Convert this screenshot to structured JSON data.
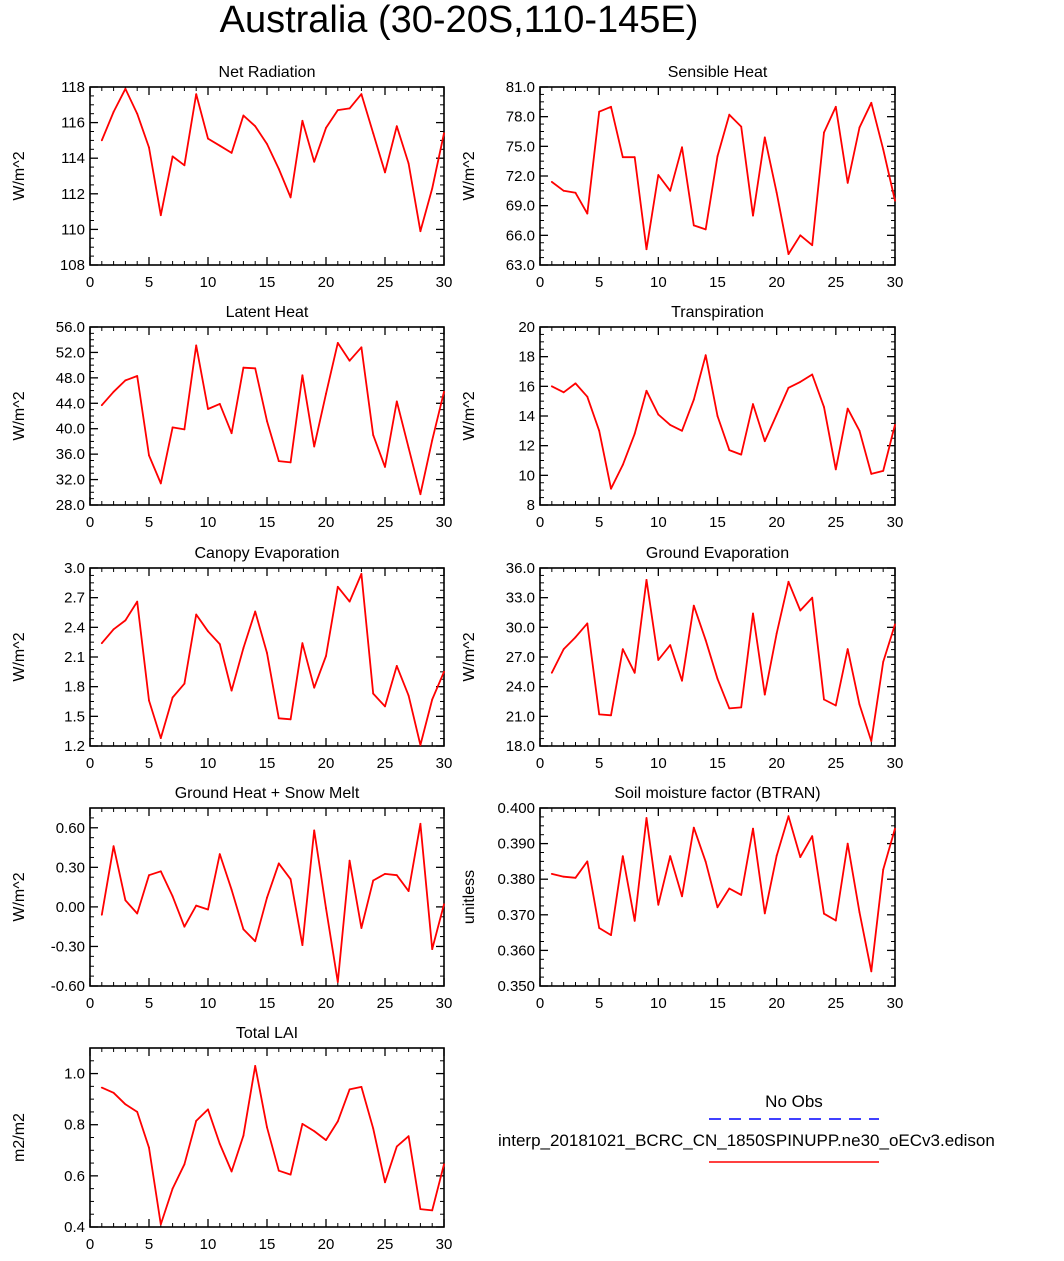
{
  "figure": {
    "title": "Australia (30-20S,110-145E)",
    "legend": {
      "obs_label": "No Obs",
      "obs_color": "#0000ff",
      "model_label": "interp_20181021_BCRC_CN_1850SPINUPP.ne30_oECv3.edison",
      "model_color": "#ff0000"
    }
  },
  "chart_data": [
    {
      "type": "line",
      "title": "Net Radiation",
      "ylabel": "W/m^2",
      "xlabel": "",
      "xlim": [
        0,
        30
      ],
      "ylim": [
        108,
        118
      ],
      "xticks": [
        0,
        5,
        10,
        15,
        20,
        25,
        30
      ],
      "yticks": [
        108,
        110,
        112,
        114,
        116,
        118
      ],
      "ytick_labels": [
        "108",
        "110",
        "112",
        "114",
        "116",
        "118"
      ],
      "x": [
        1,
        2,
        3,
        4,
        5,
        6,
        7,
        8,
        9,
        10,
        11,
        12,
        13,
        14,
        15,
        16,
        17,
        18,
        19,
        20,
        21,
        22,
        23,
        24,
        25,
        26,
        27,
        28,
        29,
        30
      ],
      "series": [
        {
          "name": "model",
          "color": "#ff0000",
          "values": [
            115.0,
            116.6,
            117.9,
            116.5,
            114.6,
            110.8,
            114.1,
            113.6,
            117.6,
            115.1,
            114.7,
            114.3,
            116.4,
            115.8,
            114.8,
            113.4,
            111.8,
            116.1,
            113.8,
            115.7,
            116.7,
            116.8,
            117.6,
            115.4,
            113.2,
            115.8,
            113.7,
            109.9,
            112.3,
            115.4
          ]
        }
      ]
    },
    {
      "type": "line",
      "title": "Sensible Heat",
      "ylabel": "W/m^2",
      "xlabel": "",
      "xlim": [
        0,
        30
      ],
      "ylim": [
        63,
        81
      ],
      "xticks": [
        0,
        5,
        10,
        15,
        20,
        25,
        30
      ],
      "yticks": [
        63,
        66,
        69,
        72,
        75,
        78,
        81
      ],
      "ytick_labels": [
        "63.0",
        "66.0",
        "69.0",
        "72.0",
        "75.0",
        "78.0",
        "81.0"
      ],
      "x": [
        1,
        2,
        3,
        4,
        5,
        6,
        7,
        8,
        9,
        10,
        11,
        12,
        13,
        14,
        15,
        16,
        17,
        18,
        19,
        20,
        21,
        22,
        23,
        24,
        25,
        26,
        27,
        28,
        29,
        30
      ],
      "series": [
        {
          "name": "model",
          "color": "#ff0000",
          "values": [
            71.4,
            70.5,
            70.3,
            68.2,
            78.5,
            79.0,
            73.9,
            73.9,
            64.6,
            72.1,
            70.5,
            74.9,
            67.0,
            66.6,
            74.0,
            78.2,
            77.0,
            68.0,
            75.9,
            70.3,
            64.1,
            66.0,
            65.0,
            76.4,
            79.0,
            71.3,
            76.9,
            79.4,
            74.7,
            69.5
          ]
        }
      ]
    },
    {
      "type": "line",
      "title": "Latent Heat",
      "ylabel": "W/m^2",
      "xlabel": "",
      "xlim": [
        0,
        30
      ],
      "ylim": [
        28,
        56
      ],
      "xticks": [
        0,
        5,
        10,
        15,
        20,
        25,
        30
      ],
      "yticks": [
        28,
        32,
        36,
        40,
        44,
        48,
        52,
        56
      ],
      "ytick_labels": [
        "28.0",
        "32.0",
        "36.0",
        "40.0",
        "44.0",
        "48.0",
        "52.0",
        "56.0"
      ],
      "x": [
        1,
        2,
        3,
        4,
        5,
        6,
        7,
        8,
        9,
        10,
        11,
        12,
        13,
        14,
        15,
        16,
        17,
        18,
        19,
        20,
        21,
        22,
        23,
        24,
        25,
        26,
        27,
        28,
        29,
        30
      ],
      "series": [
        {
          "name": "model",
          "color": "#ff0000",
          "values": [
            43.7,
            45.8,
            47.6,
            48.3,
            35.8,
            31.4,
            40.2,
            39.9,
            53.1,
            43.1,
            43.9,
            39.3,
            49.6,
            49.5,
            41.2,
            34.9,
            34.7,
            48.4,
            37.2,
            45.5,
            53.5,
            50.7,
            52.8,
            39.0,
            34.0,
            44.3,
            37.0,
            29.7,
            38.2,
            45.8
          ]
        }
      ]
    },
    {
      "type": "line",
      "title": "Transpiration",
      "ylabel": "W/m^2",
      "xlabel": "",
      "xlim": [
        0,
        30
      ],
      "ylim": [
        8,
        20
      ],
      "xticks": [
        0,
        5,
        10,
        15,
        20,
        25,
        30
      ],
      "yticks": [
        8,
        10,
        12,
        14,
        16,
        18,
        20
      ],
      "ytick_labels": [
        "8",
        "10",
        "12",
        "14",
        "16",
        "18",
        "20"
      ],
      "x": [
        1,
        2,
        3,
        4,
        5,
        6,
        7,
        8,
        9,
        10,
        11,
        12,
        13,
        14,
        15,
        16,
        17,
        18,
        19,
        20,
        21,
        22,
        23,
        24,
        25,
        26,
        27,
        28,
        29,
        30
      ],
      "series": [
        {
          "name": "model",
          "color": "#ff0000",
          "values": [
            16.0,
            15.6,
            16.2,
            15.3,
            13.0,
            9.1,
            10.7,
            12.8,
            15.7,
            14.1,
            13.4,
            13.0,
            15.1,
            18.1,
            14.0,
            11.7,
            11.4,
            14.8,
            12.3,
            14.1,
            15.9,
            16.3,
            16.8,
            14.6,
            10.4,
            14.5,
            13.0,
            10.1,
            10.3,
            13.4
          ]
        }
      ]
    },
    {
      "type": "line",
      "title": "Canopy Evaporation",
      "ylabel": "W/m^2",
      "xlabel": "",
      "xlim": [
        0,
        30
      ],
      "ylim": [
        1.2,
        3.0
      ],
      "xticks": [
        0,
        5,
        10,
        15,
        20,
        25,
        30
      ],
      "yticks": [
        1.2,
        1.5,
        1.8,
        2.1,
        2.4,
        2.7,
        3.0
      ],
      "ytick_labels": [
        "1.2",
        "1.5",
        "1.8",
        "2.1",
        "2.4",
        "2.7",
        "3.0"
      ],
      "x": [
        1,
        2,
        3,
        4,
        5,
        6,
        7,
        8,
        9,
        10,
        11,
        12,
        13,
        14,
        15,
        16,
        17,
        18,
        19,
        20,
        21,
        22,
        23,
        24,
        25,
        26,
        27,
        28,
        29,
        30
      ],
      "series": [
        {
          "name": "model",
          "color": "#ff0000",
          "values": [
            2.24,
            2.38,
            2.47,
            2.66,
            1.66,
            1.28,
            1.69,
            1.83,
            2.53,
            2.36,
            2.23,
            1.76,
            2.19,
            2.56,
            2.14,
            1.48,
            1.47,
            2.24,
            1.79,
            2.11,
            2.81,
            2.66,
            2.94,
            1.73,
            1.6,
            2.01,
            1.71,
            1.21,
            1.67,
            1.95
          ]
        }
      ]
    },
    {
      "type": "line",
      "title": "Ground Evaporation",
      "ylabel": "W/m^2",
      "xlabel": "",
      "xlim": [
        0,
        30
      ],
      "ylim": [
        18,
        36
      ],
      "xticks": [
        0,
        5,
        10,
        15,
        20,
        25,
        30
      ],
      "yticks": [
        18,
        21,
        24,
        27,
        30,
        33,
        36
      ],
      "ytick_labels": [
        "18.0",
        "21.0",
        "24.0",
        "27.0",
        "30.0",
        "33.0",
        "36.0"
      ],
      "x": [
        1,
        2,
        3,
        4,
        5,
        6,
        7,
        8,
        9,
        10,
        11,
        12,
        13,
        14,
        15,
        16,
        17,
        18,
        19,
        20,
        21,
        22,
        23,
        24,
        25,
        26,
        27,
        28,
        29,
        30
      ],
      "series": [
        {
          "name": "model",
          "color": "#ff0000",
          "values": [
            25.4,
            27.8,
            29.0,
            30.4,
            21.2,
            21.1,
            27.8,
            25.4,
            34.8,
            26.7,
            28.2,
            24.6,
            32.2,
            28.7,
            24.8,
            21.8,
            21.9,
            31.4,
            23.2,
            29.4,
            34.6,
            31.7,
            33.0,
            22.7,
            22.1,
            27.8,
            22.2,
            18.5,
            26.5,
            30.3
          ]
        }
      ]
    },
    {
      "type": "line",
      "title": "Ground Heat + Snow Melt",
      "ylabel": "W/m^2",
      "xlabel": "",
      "xlim": [
        0,
        30
      ],
      "ylim": [
        -0.6,
        0.75
      ],
      "xticks": [
        0,
        5,
        10,
        15,
        20,
        25,
        30
      ],
      "yticks": [
        -0.6,
        -0.3,
        0.0,
        0.3,
        0.6
      ],
      "ytick_labels": [
        "-0.60",
        "-0.30",
        "0.00",
        "0.30",
        "0.60"
      ],
      "x": [
        1,
        2,
        3,
        4,
        5,
        6,
        7,
        8,
        9,
        10,
        11,
        12,
        13,
        14,
        15,
        16,
        17,
        18,
        19,
        20,
        21,
        22,
        23,
        24,
        25,
        26,
        27,
        28,
        29,
        30
      ],
      "series": [
        {
          "name": "model",
          "color": "#ff0000",
          "values": [
            -0.06,
            0.46,
            0.05,
            -0.05,
            0.24,
            0.27,
            0.08,
            -0.15,
            0.01,
            -0.02,
            0.4,
            0.13,
            -0.17,
            -0.26,
            0.07,
            0.33,
            0.21,
            -0.29,
            0.58,
            -0.01,
            -0.57,
            0.35,
            -0.16,
            0.2,
            0.25,
            0.24,
            0.12,
            0.63,
            -0.32,
            0.02
          ]
        }
      ]
    },
    {
      "type": "line",
      "title": "Soil moisture factor (BTRAN)",
      "ylabel": "unitless",
      "xlabel": "",
      "xlim": [
        0,
        30
      ],
      "ylim": [
        0.35,
        0.4
      ],
      "xticks": [
        0,
        5,
        10,
        15,
        20,
        25,
        30
      ],
      "yticks": [
        0.35,
        0.36,
        0.37,
        0.38,
        0.39,
        0.4
      ],
      "ytick_labels": [
        "0.350",
        "0.360",
        "0.370",
        "0.380",
        "0.390",
        "0.400"
      ],
      "x": [
        1,
        2,
        3,
        4,
        5,
        6,
        7,
        8,
        9,
        10,
        11,
        12,
        13,
        14,
        15,
        16,
        17,
        18,
        19,
        20,
        21,
        22,
        23,
        24,
        25,
        26,
        27,
        28,
        29,
        30
      ],
      "series": [
        {
          "name": "model",
          "color": "#ff0000",
          "values": [
            0.3815,
            0.3807,
            0.3804,
            0.385,
            0.3663,
            0.3643,
            0.3865,
            0.3683,
            0.3972,
            0.3728,
            0.3865,
            0.3752,
            0.3945,
            0.3849,
            0.3721,
            0.3774,
            0.3756,
            0.3942,
            0.3704,
            0.3866,
            0.3977,
            0.3862,
            0.3921,
            0.3703,
            0.3684,
            0.39,
            0.3707,
            0.3541,
            0.3827,
            0.3942
          ]
        }
      ]
    },
    {
      "type": "line",
      "title": "Total LAI",
      "ylabel": "m2/m2",
      "xlabel": "",
      "xlim": [
        0,
        30
      ],
      "ylim": [
        0.4,
        1.1
      ],
      "xticks": [
        0,
        5,
        10,
        15,
        20,
        25,
        30
      ],
      "yticks": [
        0.4,
        0.6,
        0.8,
        1.0
      ],
      "ytick_labels": [
        "0.4",
        "0.6",
        "0.8",
        "1.0"
      ],
      "x": [
        1,
        2,
        3,
        4,
        5,
        6,
        7,
        8,
        9,
        10,
        11,
        12,
        13,
        14,
        15,
        16,
        17,
        18,
        19,
        20,
        21,
        22,
        23,
        24,
        25,
        26,
        27,
        28,
        29,
        30
      ],
      "series": [
        {
          "name": "model",
          "color": "#ff0000",
          "values": [
            0.945,
            0.925,
            0.88,
            0.85,
            0.71,
            0.41,
            0.55,
            0.645,
            0.815,
            0.86,
            0.725,
            0.617,
            0.757,
            1.03,
            0.79,
            0.62,
            0.605,
            0.803,
            0.775,
            0.74,
            0.813,
            0.938,
            0.948,
            0.785,
            0.575,
            0.715,
            0.755,
            0.47,
            0.465,
            0.645
          ]
        }
      ]
    }
  ]
}
